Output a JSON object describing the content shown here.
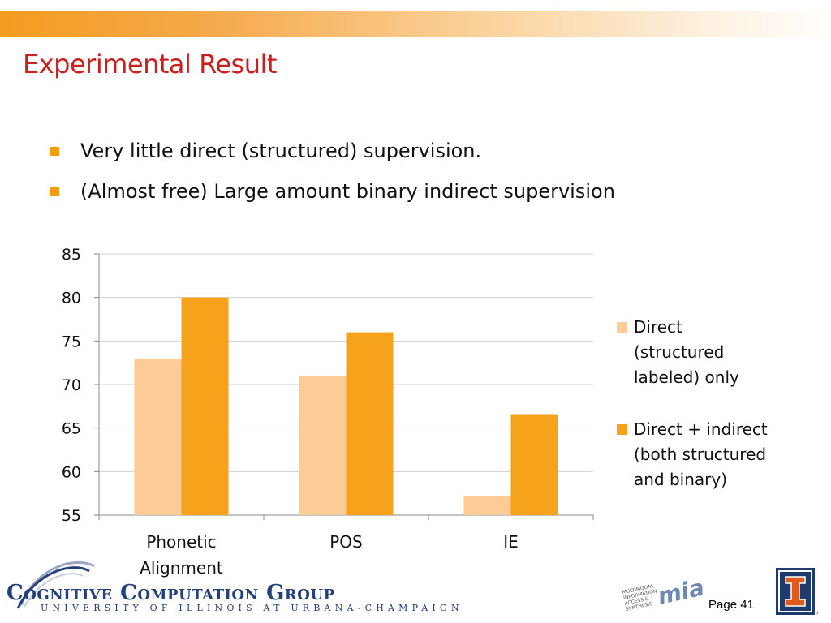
{
  "slide": {
    "title": "Experimental Result",
    "bullets": [
      "Very little direct (structured) supervision.",
      "(Almost free) Large amount binary indirect supervision"
    ],
    "footer": {
      "logo_main": "Cognitive Computation Group",
      "logo_sub": "UNIVERSITY OF ILLINOIS AT URBANA-CHAMPAIGN",
      "page_label": "Page 41",
      "mias_logo_lines": [
        "MULTIMODAL",
        "INFORMATION",
        "ACCESS &",
        "SYNTHESIS"
      ],
      "mias_logo_word": "mias"
    }
  },
  "chart_data": {
    "type": "bar",
    "categories": [
      [
        "Phonetic",
        "Alignment"
      ],
      [
        "POS"
      ],
      [
        "IE"
      ]
    ],
    "series": [
      {
        "name": "Direct (structured labeled) only",
        "name_lines": [
          "Direct",
          "(structured",
          "labeled) only"
        ],
        "values": [
          72.9,
          71.0,
          57.2
        ],
        "color": "#fccb97"
      },
      {
        "name": "Direct + indirect (both structured and binary)",
        "name_lines": [
          "Direct + indirect",
          "(both structured",
          "and binary)"
        ],
        "values": [
          80.0,
          76.0,
          66.6
        ],
        "color": "#f7a21b"
      }
    ],
    "yticks": [
      "85",
      "80",
      "75",
      "70",
      "65",
      "60",
      "55"
    ],
    "ylim": [
      55,
      85
    ],
    "grid": true,
    "legend": "right"
  },
  "colors": {
    "title": "#cc1f1f",
    "bullet": "#f39c12",
    "gridline": "#d0d0d0",
    "axis": "#888888"
  }
}
